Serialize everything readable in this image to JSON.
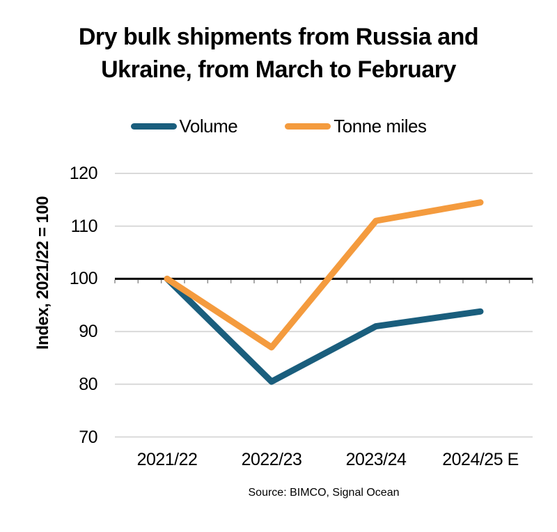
{
  "figure": {
    "title_lines": [
      "Dry bulk shipments from Russia and",
      "Ukraine, from March to February"
    ],
    "source": "Source: BIMCO, Signal Ocean"
  },
  "colors": {
    "volume_line": "#1A5E7D",
    "tonne_miles_line": "#F49B3E",
    "gridline": "#D9D9D9",
    "baseline": "#000000",
    "minor_tick": "#8C8C8C",
    "text": "#000000",
    "background": "#FFFFFF"
  },
  "chart_data": {
    "type": "line",
    "title": "Dry bulk shipments from Russia and Ukraine, from March to February",
    "categories": [
      "2021/22",
      "2022/23",
      "2023/24",
      "2024/25 E"
    ],
    "series": [
      {
        "name": "Volume",
        "color": "#1A5E7D",
        "values": [
          100,
          80.5,
          91,
          93.8
        ]
      },
      {
        "name": "Tonne miles",
        "color": "#F49B3E",
        "values": [
          100,
          87,
          111,
          114.5
        ]
      }
    ],
    "xlabel": "",
    "ylabel": "Index, 2021/22 = 100",
    "yticks": [
      70,
      80,
      90,
      100,
      110,
      120
    ],
    "ylim": [
      70,
      120
    ],
    "baseline_value": 100,
    "grid": true,
    "legend_position": "top",
    "source": "Source: BIMCO, Signal Ocean"
  }
}
